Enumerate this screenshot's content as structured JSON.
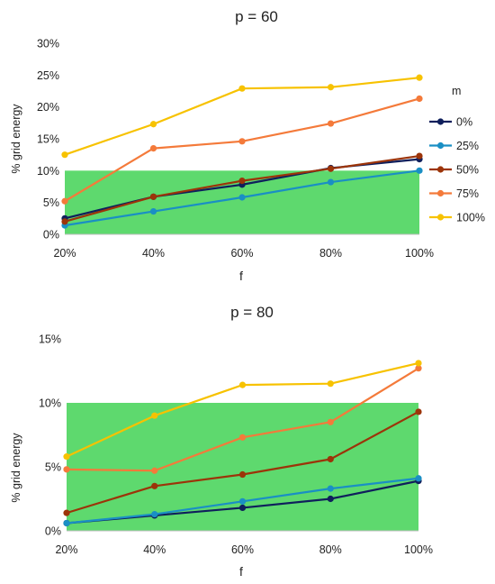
{
  "chart_data": [
    {
      "type": "line",
      "title": "p = 60",
      "xlabel": "f",
      "ylabel": "% grid energy",
      "categories": [
        "20%",
        "40%",
        "60%",
        "80%",
        "100%"
      ],
      "yticks": [
        "0%",
        "5%",
        "10%",
        "15%",
        "20%",
        "25%",
        "30%"
      ],
      "ylim": [
        0,
        30
      ],
      "band": {
        "from": 0,
        "to": 10,
        "color": "#5ed96e"
      },
      "legend": {
        "title": "m",
        "placement": "right"
      },
      "series": [
        {
          "name": "0%",
          "color": "#0f1f5c",
          "values": [
            2.5,
            5.9,
            7.8,
            10.4,
            11.8
          ]
        },
        {
          "name": "25%",
          "color": "#1a8fc4",
          "values": [
            1.4,
            3.6,
            5.8,
            8.2,
            10.0
          ]
        },
        {
          "name": "50%",
          "color": "#9c3409",
          "values": [
            2.0,
            5.9,
            8.4,
            10.3,
            12.3
          ]
        },
        {
          "name": "75%",
          "color": "#f47a3a",
          "values": [
            5.2,
            13.5,
            14.6,
            17.4,
            21.3
          ]
        },
        {
          "name": "100%",
          "color": "#f7c200",
          "values": [
            12.5,
            17.3,
            22.9,
            23.1,
            24.6
          ]
        }
      ]
    },
    {
      "type": "line",
      "title": "p = 80",
      "xlabel": "f",
      "ylabel": "% grid energy",
      "categories": [
        "20%",
        "40%",
        "60%",
        "80%",
        "100%"
      ],
      "yticks": [
        "0%",
        "5%",
        "10%",
        "15%"
      ],
      "ylim": [
        0,
        15
      ],
      "band": {
        "from": 0,
        "to": 10,
        "color": "#5ed96e"
      },
      "series": [
        {
          "color": "#0f1f5c",
          "values": [
            0.6,
            1.2,
            1.8,
            2.5,
            3.9
          ]
        },
        {
          "color": "#1a8fc4",
          "values": [
            0.6,
            1.3,
            2.3,
            3.3,
            4.1
          ]
        },
        {
          "color": "#9c3409",
          "values": [
            1.4,
            3.5,
            4.4,
            5.6,
            9.3
          ]
        },
        {
          "color": "#f47a3a",
          "values": [
            4.8,
            4.7,
            7.3,
            8.5,
            12.7
          ]
        },
        {
          "color": "#f7c200",
          "values": [
            5.8,
            9.0,
            11.4,
            11.5,
            13.1
          ]
        }
      ]
    }
  ]
}
